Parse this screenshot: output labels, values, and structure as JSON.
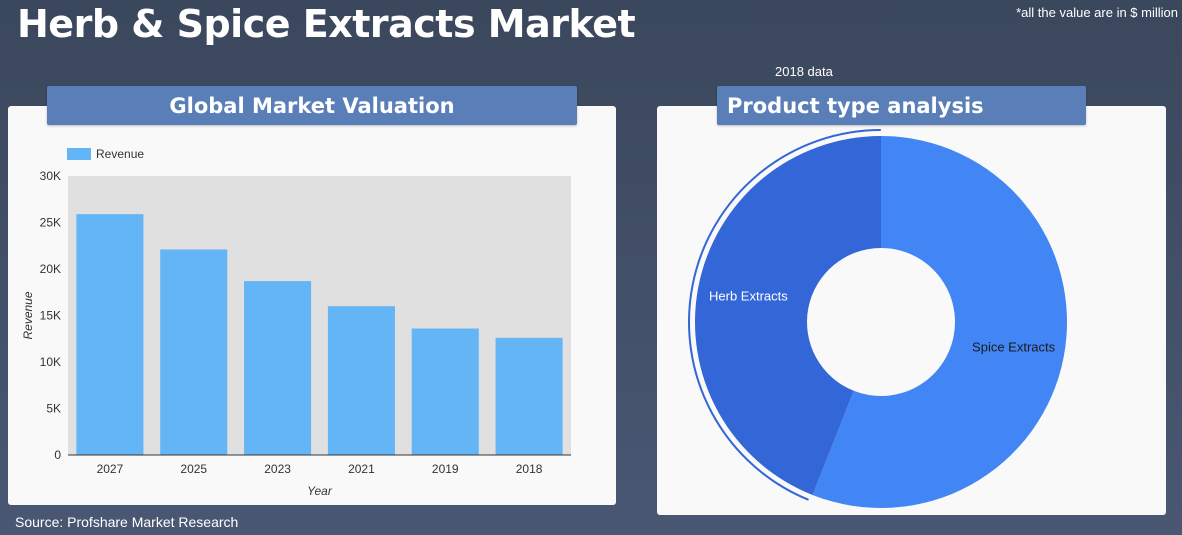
{
  "header": {
    "title": "Herb & Spice Extracts Market",
    "note": "*all the value are in $ million",
    "data_year": "2018 data"
  },
  "panels": {
    "left_title": "Global Market Valuation",
    "right_title": "Product type analysis"
  },
  "footer": {
    "source": "Source: Profshare Market Research"
  },
  "colors": {
    "bar": "#64b5f6",
    "herb": "#3366d6",
    "spice": "#4285f4",
    "plot_bg": "#e0e0e0"
  },
  "chart_data": [
    {
      "type": "bar",
      "legend": "Revenue",
      "categories": [
        "2027",
        "2025",
        "2023",
        "2021",
        "2019",
        "2018"
      ],
      "values": [
        25900,
        22100,
        18700,
        16000,
        13600,
        12600
      ],
      "xlabel": "Year",
      "ylabel": "Revenue",
      "ylim": [
        0,
        30000
      ],
      "yticks": [
        0,
        5000,
        10000,
        15000,
        20000,
        25000,
        30000
      ],
      "ytick_labels": [
        "0",
        "5K",
        "10K",
        "15K",
        "20K",
        "25K",
        "30K"
      ],
      "grid": false,
      "legend_position": "top-left"
    },
    {
      "type": "pie",
      "donut": true,
      "labels": [
        "Spice Extracts",
        "Herb Extracts"
      ],
      "values": [
        56,
        44
      ],
      "highlighted": "Herb Extracts"
    }
  ]
}
